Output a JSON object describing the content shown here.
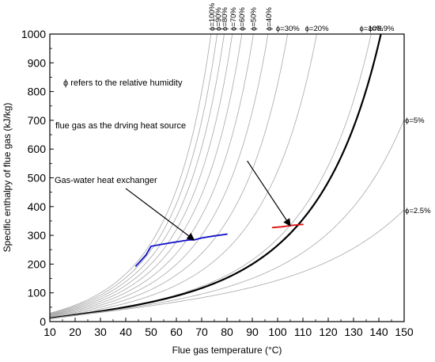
{
  "chart_data": {
    "type": "line",
    "xlabel": "Flue gas temperature (°C)",
    "ylabel": "Specific enthalpy of flue gas (kJ/kg)",
    "xlim": [
      10,
      150
    ],
    "ylim": [
      0,
      1000
    ],
    "xticks": [
      10,
      20,
      30,
      40,
      50,
      60,
      70,
      80,
      90,
      100,
      110,
      120,
      130,
      140,
      150
    ],
    "yticks": [
      0,
      100,
      200,
      300,
      400,
      500,
      600,
      700,
      800,
      900,
      1000
    ],
    "grid": false,
    "legend": "none",
    "humidity_curves": [
      {
        "label": "ϕ=100%",
        "phi": 1.0,
        "color": "#a8a8a8"
      },
      {
        "label": "ϕ=90%",
        "phi": 0.9,
        "color": "#a8a8a8"
      },
      {
        "label": "ϕ=80%",
        "phi": 0.8,
        "color": "#a8a8a8"
      },
      {
        "label": "ϕ=70%",
        "phi": 0.7,
        "color": "#a8a8a8"
      },
      {
        "label": "ϕ=60%",
        "phi": 0.6,
        "color": "#a8a8a8"
      },
      {
        "label": "ϕ=50%",
        "phi": 0.5,
        "color": "#a8a8a8"
      },
      {
        "label": "ϕ=40%",
        "phi": 0.4,
        "color": "#a8a8a8"
      },
      {
        "label": "ϕ=30%",
        "phi": 0.3,
        "color": "#a8a8a8"
      },
      {
        "label": "ϕ=20%",
        "phi": 0.2,
        "color": "#a8a8a8"
      },
      {
        "label": "ϕ=10%",
        "phi": 0.1,
        "color": "#a8a8a8"
      },
      {
        "label": "ϕ=8.9%",
        "phi": 0.089,
        "color": "#000000",
        "bold": true
      },
      {
        "label": "ϕ=5%",
        "phi": 0.05,
        "color": "#a8a8a8"
      },
      {
        "label": "ϕ=2.5%",
        "phi": 0.025,
        "color": "#a8a8a8"
      }
    ],
    "series": [
      {
        "color": "#1010c8",
        "points": [
          [
            44,
            193
          ],
          [
            46,
            212
          ],
          [
            48,
            232
          ],
          [
            50,
            262
          ],
          [
            55,
            270
          ],
          [
            60,
            277
          ],
          [
            65,
            284
          ],
          [
            67,
            284
          ],
          [
            70,
            291
          ],
          [
            75,
            298
          ],
          [
            80,
            304
          ]
        ]
      },
      {
        "color": "#e01010",
        "points": [
          [
            98,
            327
          ],
          [
            102,
            330
          ],
          [
            106,
            335
          ],
          [
            110,
            338
          ]
        ]
      }
    ],
    "annotations": [
      {
        "text": "ϕ refers to the relative humidity"
      },
      {
        "text": "flue gas as the drving heat source",
        "arrow_from": [
          88,
          559
        ],
        "arrow_to": [
          105,
          333
        ]
      },
      {
        "text": "Gas-water heat exchanger",
        "arrow_from": [
          40,
          463
        ],
        "arrow_to": [
          67,
          284
        ]
      }
    ]
  }
}
